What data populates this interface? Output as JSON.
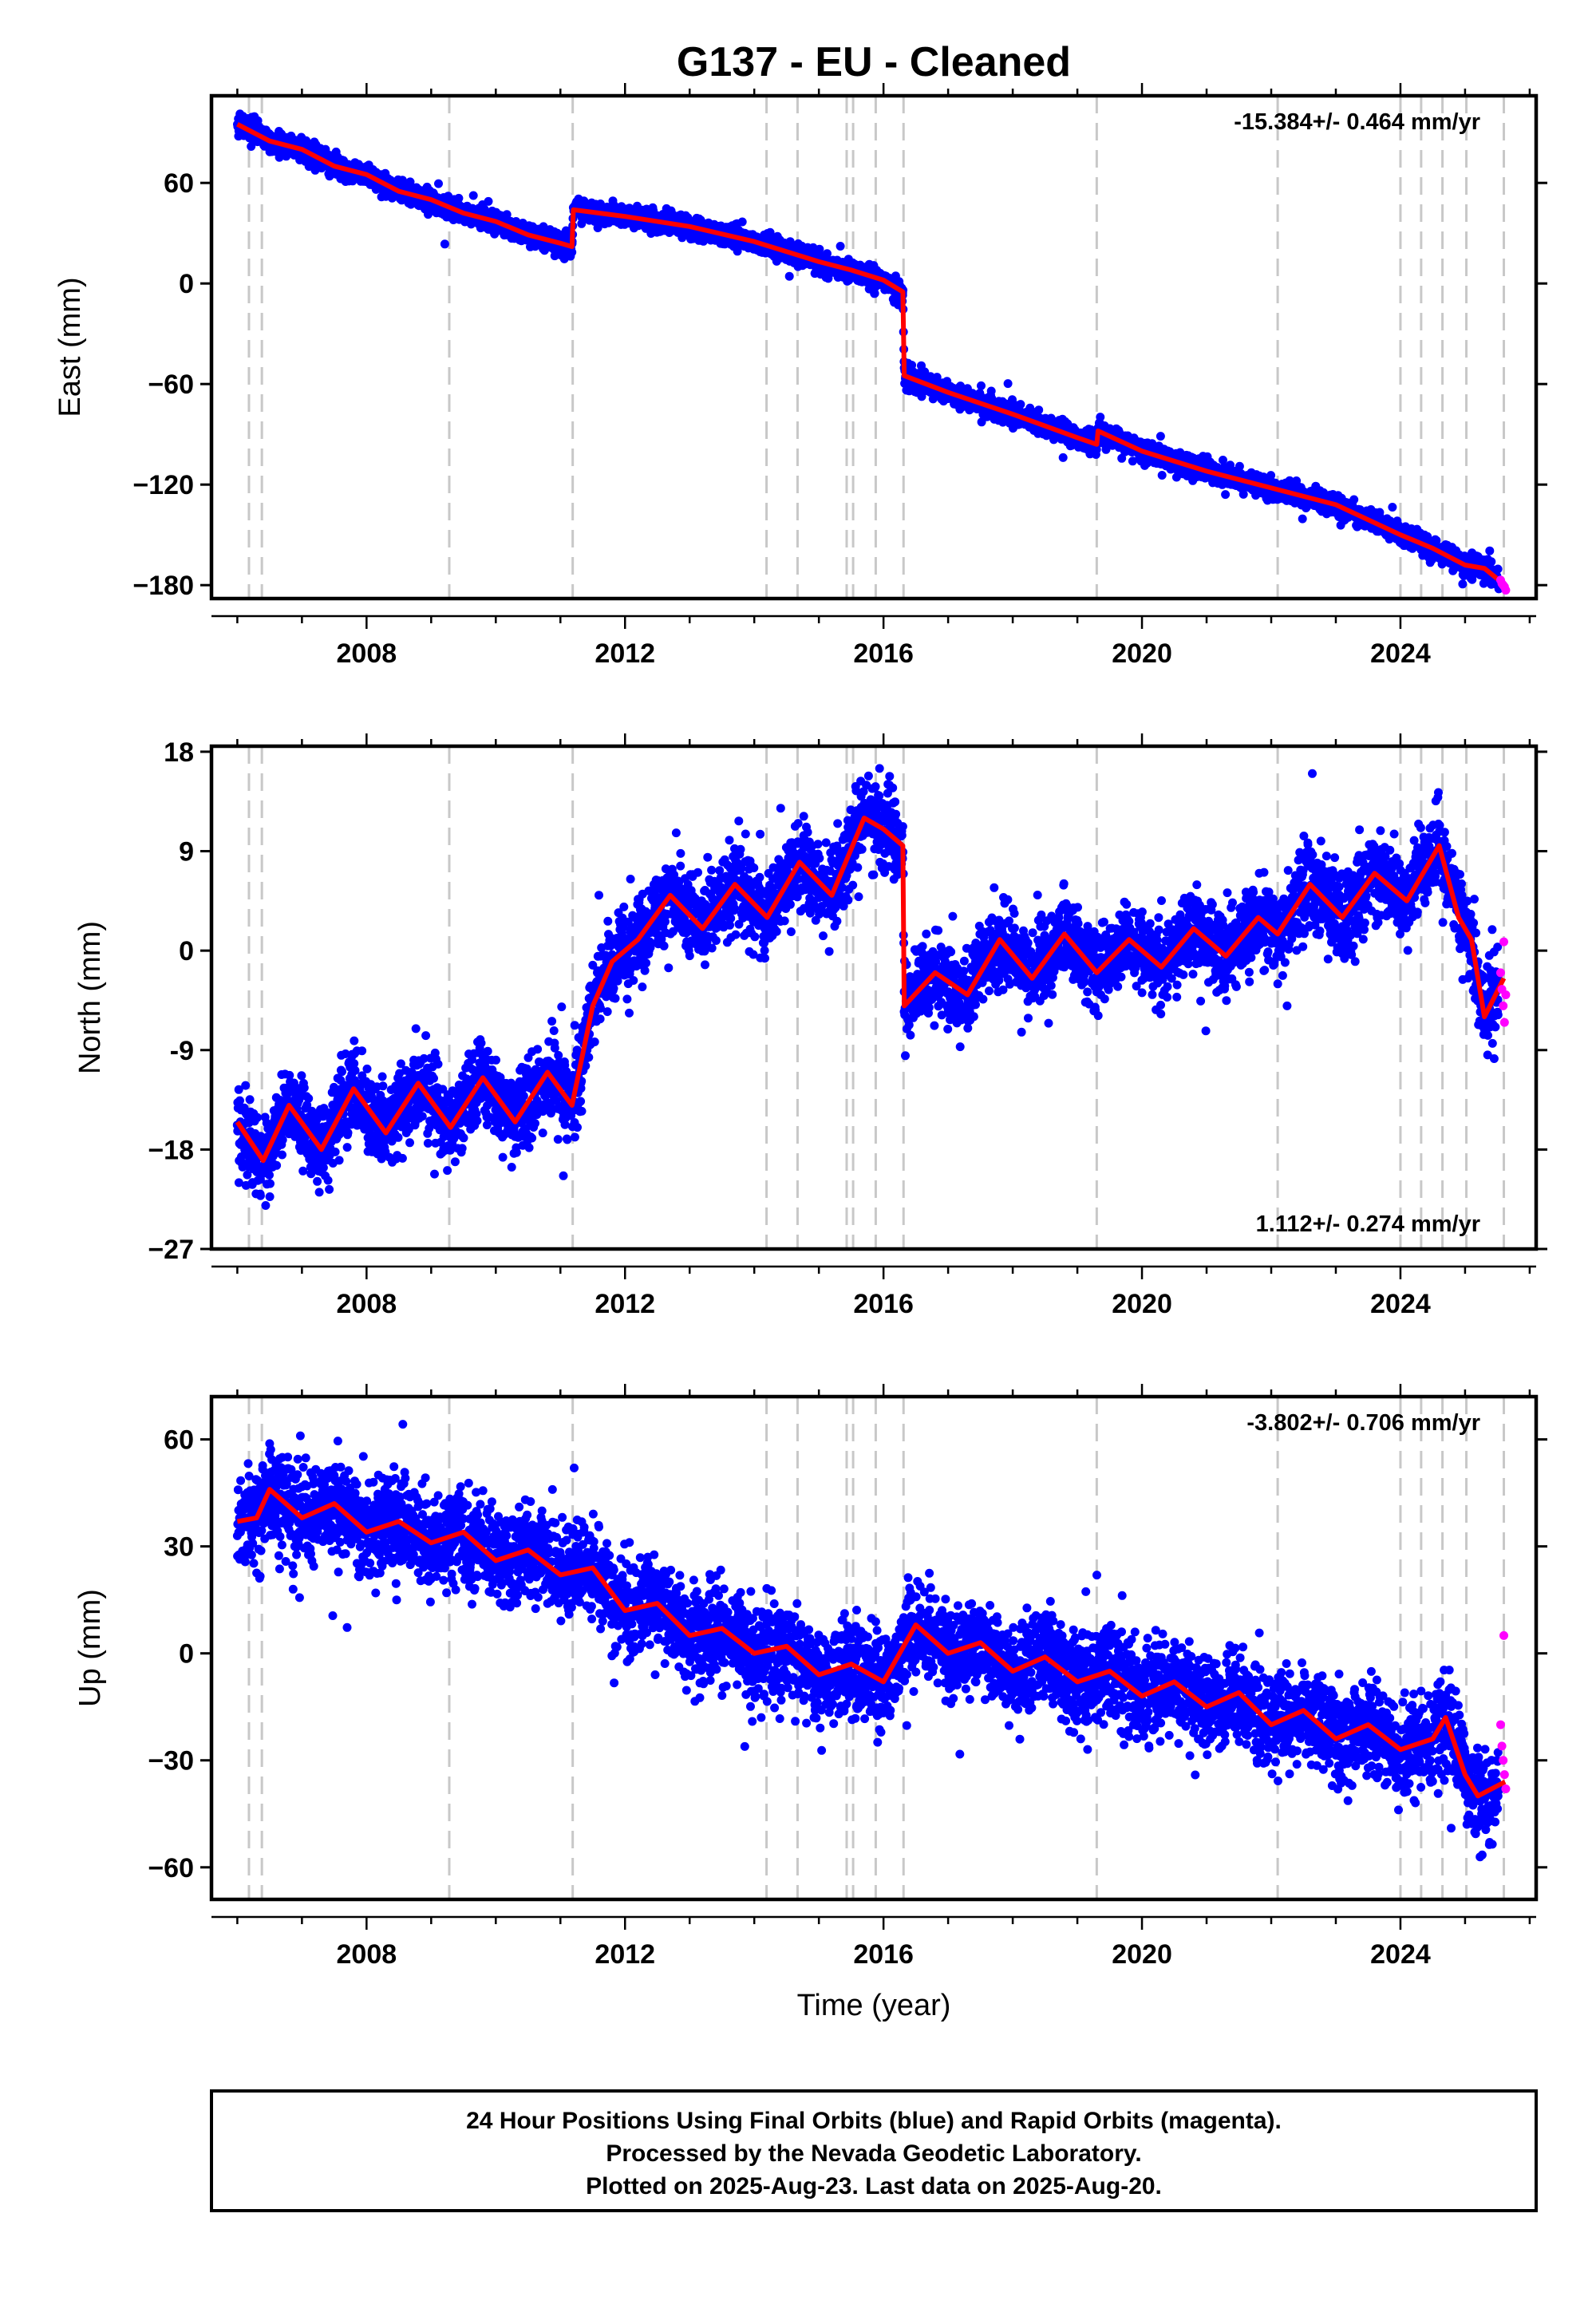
{
  "title": "G137  - EU - Cleaned",
  "colors": {
    "final_orbits": "#0000ff",
    "rapid_orbits": "#ff00ff",
    "model": "#ff0000",
    "event_lines": "#c8c8c8"
  },
  "footer": {
    "line1": "24 Hour Positions Using Final Orbits (blue) and Rapid Orbits (magenta).",
    "line2": "Processed by the Nevada Geodetic Laboratory.",
    "line3": "Plotted on 2025-Aug-23. Last data on 2025-Aug-20."
  },
  "chart_data": [
    {
      "type": "scatter",
      "title": "G137  - EU - Cleaned",
      "xlabel": "",
      "ylabel": "East (mm)",
      "xlim": [
        2005.6,
        2026.1
      ],
      "ylim": [
        -188,
        112
      ],
      "x_ticks": [
        "2008",
        "2012",
        "2016",
        "2020",
        "2024"
      ],
      "y_ticks": [
        "60",
        "0",
        "−60",
        "−120",
        "−180"
      ],
      "y_tick_values": [
        60,
        0,
        -60,
        -120,
        -180
      ],
      "rate_label": "-15.384+/- 0.464 mm/yr",
      "rate_position": "top-right",
      "event_lines": [
        2006.18,
        2006.38,
        2009.28,
        2011.19,
        2014.19,
        2014.67,
        2015.43,
        2015.53,
        2015.88,
        2016.31,
        2019.3,
        2022.1,
        2024.0,
        2024.32,
        2024.65,
        2025.02,
        2025.6
      ],
      "series": [
        {
          "name": "Final Orbits",
          "color": "#0000ff",
          "noise": 3.0,
          "model_x": [
            2006.0,
            2006.5,
            2007.0,
            2007.5,
            2008.0,
            2008.5,
            2009.0,
            2009.5,
            2010.0,
            2010.5,
            2011.0,
            2011.18,
            2011.2,
            2012.0,
            2013.0,
            2014.0,
            2015.0,
            2015.5,
            2016.0,
            2016.3,
            2016.32,
            2017.0,
            2018.0,
            2019.0,
            2019.3,
            2019.32,
            2020.0,
            2021.0,
            2022.0,
            2023.0,
            2024.0,
            2024.5,
            2025.0,
            2025.3,
            2025.62
          ],
          "model_y": [
            95,
            85,
            80,
            70,
            65,
            55,
            50,
            42,
            37,
            29,
            24,
            22,
            44,
            40,
            34,
            25,
            13,
            8,
            2,
            -5,
            -55,
            -65,
            -78,
            -92,
            -96,
            -88,
            -100,
            -112,
            -122,
            -132,
            -150,
            -158,
            -168,
            -170,
            -180
          ]
        },
        {
          "name": "Rapid Orbits",
          "color": "#ff00ff",
          "x": [
            2025.55,
            2025.57,
            2025.59,
            2025.61,
            2025.63
          ],
          "y": [
            -177,
            -179,
            -180,
            -181,
            -183
          ]
        }
      ]
    },
    {
      "type": "scatter",
      "xlabel": "",
      "ylabel": "North (mm)",
      "xlim": [
        2005.6,
        2026.1
      ],
      "ylim": [
        -27,
        18.5
      ],
      "x_ticks": [
        "2008",
        "2012",
        "2016",
        "2020",
        "2024"
      ],
      "y_ticks": [
        "18",
        "9",
        "0",
        "-9",
        "−18",
        "−27"
      ],
      "y_tick_values": [
        18,
        9,
        0,
        -9,
        -18,
        -27
      ],
      "rate_label": "1.112+/- 0.274 mm/yr",
      "rate_position": "bottom-right",
      "event_lines": [
        2006.18,
        2006.38,
        2009.28,
        2011.19,
        2014.19,
        2014.67,
        2015.43,
        2015.53,
        2015.88,
        2016.31,
        2019.3,
        2022.1,
        2024.0,
        2024.32,
        2024.65,
        2025.02,
        2025.6
      ],
      "series": [
        {
          "name": "Final Orbits",
          "color": "#0000ff",
          "noise": 1.8,
          "model_x": [
            2006.0,
            2006.4,
            2006.8,
            2007.3,
            2007.8,
            2008.3,
            2008.8,
            2009.3,
            2009.8,
            2010.3,
            2010.8,
            2011.18,
            2011.5,
            2011.8,
            2012.2,
            2012.7,
            2013.2,
            2013.7,
            2014.2,
            2014.7,
            2015.2,
            2015.7,
            2016.0,
            2016.3,
            2016.32,
            2016.8,
            2017.3,
            2017.8,
            2018.3,
            2018.8,
            2019.3,
            2019.8,
            2020.3,
            2020.8,
            2021.3,
            2021.8,
            2022.1,
            2022.6,
            2023.1,
            2023.6,
            2024.1,
            2024.6,
            2024.9,
            2025.1,
            2025.3,
            2025.6
          ],
          "model_y": [
            -15.5,
            -19,
            -14,
            -18,
            -12.5,
            -16.5,
            -12,
            -16,
            -11.5,
            -15.5,
            -11,
            -14,
            -5,
            -1,
            1,
            5,
            2,
            6,
            3,
            8,
            5,
            12,
            11,
            9.5,
            -5,
            -2,
            -4,
            1,
            -2.5,
            1.5,
            -2,
            1,
            -1.5,
            2,
            -0.5,
            3,
            1.5,
            6,
            3,
            7,
            4.5,
            9.5,
            3,
            1,
            -6,
            -2.5
          ]
        },
        {
          "name": "Rapid Orbits",
          "color": "#ff00ff",
          "x": [
            2025.55,
            2025.57,
            2025.59,
            2025.61,
            2025.63,
            2025.6
          ],
          "y": [
            -2,
            -3.5,
            -5,
            -6.5,
            -4,
            0.8
          ]
        }
      ]
    },
    {
      "type": "scatter",
      "xlabel": "Time (year)",
      "ylabel": "Up (mm)",
      "xlim": [
        2005.6,
        2026.1
      ],
      "ylim": [
        -69,
        72
      ],
      "x_ticks": [
        "2008",
        "2012",
        "2016",
        "2020",
        "2024"
      ],
      "y_ticks": [
        "60",
        "30",
        "0",
        "−30",
        "−60"
      ],
      "y_tick_values": [
        60,
        30,
        0,
        -30,
        -60
      ],
      "rate_label": "-3.802+/- 0.706 mm/yr",
      "rate_position": "top-right",
      "event_lines": [
        2006.18,
        2006.38,
        2009.28,
        2011.19,
        2014.19,
        2014.67,
        2015.43,
        2015.53,
        2015.88,
        2016.31,
        2019.3,
        2022.1,
        2024.0,
        2024.32,
        2024.65,
        2025.02,
        2025.6
      ],
      "series": [
        {
          "name": "Final Orbits",
          "color": "#0000ff",
          "noise": 6.5,
          "model_x": [
            2006.0,
            2006.3,
            2006.5,
            2007.0,
            2007.5,
            2008.0,
            2008.5,
            2009.0,
            2009.5,
            2010.0,
            2010.5,
            2011.0,
            2011.5,
            2012.0,
            2012.5,
            2013.0,
            2013.5,
            2014.0,
            2014.5,
            2015.0,
            2015.5,
            2016.0,
            2016.5,
            2017.0,
            2017.5,
            2018.0,
            2018.5,
            2019.0,
            2019.5,
            2020.0,
            2020.5,
            2021.0,
            2021.5,
            2022.0,
            2022.5,
            2023.0,
            2023.5,
            2024.0,
            2024.5,
            2024.7,
            2025.0,
            2025.2,
            2025.62
          ],
          "model_y": [
            37,
            38,
            46,
            38,
            42,
            34,
            37,
            31,
            34,
            26,
            29,
            22,
            24,
            12,
            14,
            5,
            7,
            0,
            2,
            -6,
            -3,
            -8,
            8,
            0,
            3,
            -5,
            -1,
            -8,
            -5,
            -12,
            -8,
            -15,
            -11,
            -20,
            -16,
            -24,
            -20,
            -27,
            -24,
            -18,
            -34,
            -40,
            -36
          ]
        },
        {
          "name": "Rapid Orbits",
          "color": "#ff00ff",
          "x": [
            2025.55,
            2025.57,
            2025.59,
            2025.61,
            2025.63,
            2025.6
          ],
          "y": [
            -20,
            -26,
            -30,
            -34,
            -38,
            5
          ]
        }
      ]
    }
  ]
}
